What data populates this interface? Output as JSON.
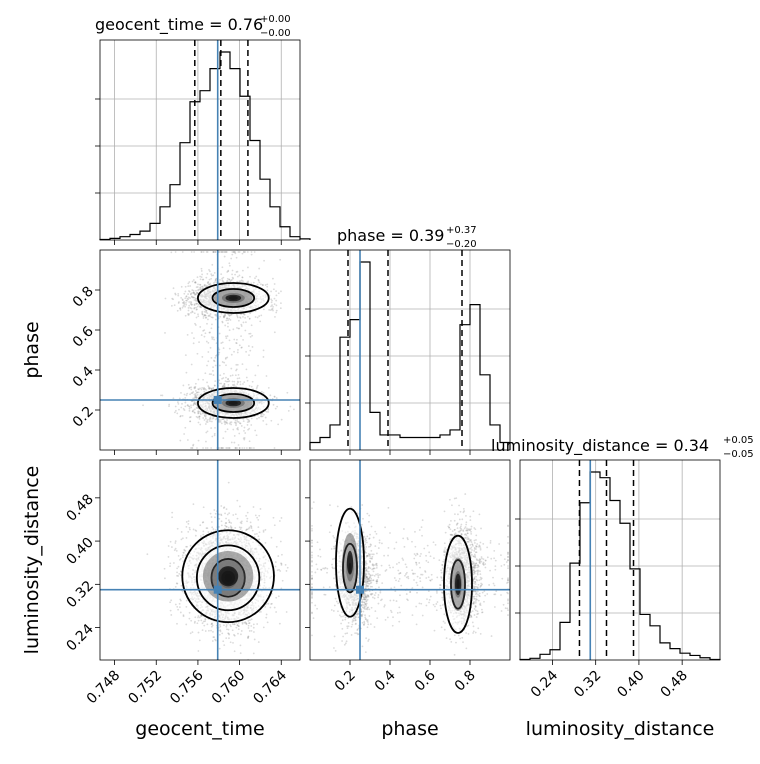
{
  "chart_data": {
    "type": "corner",
    "parameters": [
      "geocent_time",
      "phase",
      "luminosity_distance"
    ],
    "titles": [
      {
        "parameter": "geocent_time",
        "prefix": "geocent_time = ",
        "median": "0.76",
        "plus": "+0.00",
        "minus": "−0.00"
      },
      {
        "parameter": "phase",
        "prefix": "phase = ",
        "median": "0.39",
        "plus": "+0.37",
        "minus": "−0.20"
      },
      {
        "parameter": "luminosity_distance",
        "prefix": "luminosity_distance = ",
        "median": "0.34",
        "plus": "+0.05",
        "minus": "−0.05"
      }
    ],
    "axes": {
      "geocent_time": {
        "range": [
          0.7466,
          0.7658
        ],
        "ticks": [
          0.748,
          0.752,
          0.756,
          0.76,
          0.764
        ],
        "ticklabels": [
          "0.748",
          "0.752",
          "0.756",
          "0.760",
          "0.764"
        ]
      },
      "phase": {
        "range": [
          0.0,
          1.0
        ],
        "ticks": [
          0.2,
          0.4,
          0.6,
          0.8
        ],
        "ticklabels": [
          "0.2",
          "0.4",
          "0.6",
          "0.8"
        ]
      },
      "luminosity_distance": {
        "range": [
          0.18,
          0.55
        ],
        "ticks": [
          0.24,
          0.32,
          0.4,
          0.48
        ],
        "ticklabels": [
          "0.24",
          "0.32",
          "0.40",
          "0.48"
        ]
      }
    },
    "truths": {
      "geocent_time": 0.7579,
      "phase": 0.25,
      "luminosity_distance": 0.31
    },
    "quantiles": {
      "geocent_time": [
        0.7557,
        0.7582,
        0.7608
      ],
      "phase": [
        0.19,
        0.39,
        0.76
      ],
      "luminosity_distance": [
        0.29,
        0.34,
        0.39
      ]
    },
    "histograms": {
      "geocent_time": {
        "edges_start": 0.7466,
        "bin_width": 0.00096,
        "counts": [
          0.5,
          1.5,
          3,
          5,
          8,
          15,
          30,
          50,
          88,
          125,
          135,
          155,
          170,
          155,
          130,
          90,
          55,
          30,
          12,
          3,
          1
        ]
      },
      "phase": {
        "edges_start": 0.0,
        "bin_width": 0.05,
        "counts": [
          3,
          5,
          10,
          45,
          52,
          75,
          15,
          6,
          6,
          5,
          5,
          5,
          5,
          6,
          8,
          50,
          58,
          30,
          10,
          3
        ]
      },
      "luminosity_distance": {
        "edges_start": 0.18,
        "bin_width": 0.0185,
        "counts": [
          0.5,
          1.5,
          5,
          9,
          33,
          85,
          138,
          165,
          160,
          140,
          120,
          80,
          40,
          30,
          15,
          10,
          6,
          4,
          2,
          0.5
        ]
      }
    },
    "grid": true
  }
}
